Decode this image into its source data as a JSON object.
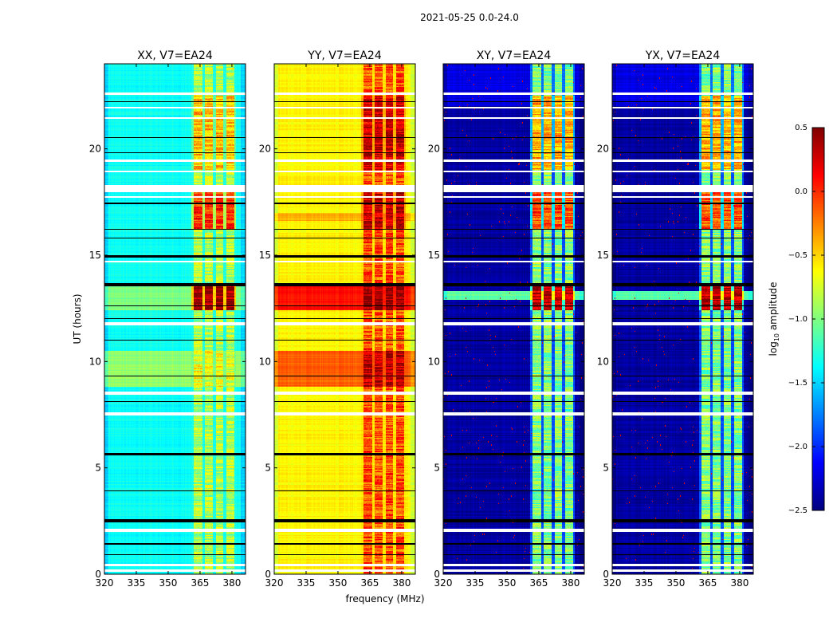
{
  "chart_data": {
    "type": "heatmap",
    "title": "2021-05-25 0.0-24.0",
    "xlabel": "frequency (MHz)",
    "ylabel": "UT (hours)",
    "xlim": [
      320,
      386.4
    ],
    "ylim": [
      0,
      24
    ],
    "xticks": [
      320,
      335,
      350,
      365,
      380
    ],
    "xtick_labels": [
      "320",
      "335",
      "350",
      "365",
      "380"
    ],
    "yticks": [
      0,
      5,
      10,
      15,
      20
    ],
    "ytick_labels": [
      "0",
      "5",
      "10",
      "15",
      "20"
    ],
    "colorbar": {
      "label_base": "log",
      "label_sub": "10",
      "label_rest": " amplitude",
      "colormap": "jet",
      "range": [
        -2.5,
        0.5
      ],
      "ticks": [
        0.5,
        0.0,
        -0.5,
        -1.0,
        -1.5,
        -2.0,
        -2.5
      ],
      "tick_labels": [
        "0.5",
        "0.0",
        "−0.5",
        "−1.0",
        "−1.5",
        "−2.0",
        "−2.5"
      ]
    },
    "rfi_channels_mhz": [
      [
        362,
        366
      ],
      [
        367.3,
        371
      ],
      [
        372.4,
        376
      ],
      [
        377.4,
        381
      ]
    ],
    "flagged_hours": [
      [
        0.12,
        0.22
      ],
      [
        0.38,
        0.5
      ],
      [
        2.0,
        2.15
      ],
      [
        7.45,
        7.6
      ],
      [
        8.45,
        8.6
      ],
      [
        11.7,
        11.85
      ],
      [
        14.65,
        14.72
      ],
      [
        17.7,
        17.78
      ],
      [
        17.95,
        18.3
      ],
      [
        18.9,
        18.97
      ],
      [
        19.4,
        19.5
      ],
      [
        21.4,
        21.5
      ],
      [
        21.9,
        21.97
      ],
      [
        22.55,
        22.65
      ]
    ],
    "dark_hours": [
      [
        0.9,
        0.95
      ],
      [
        1.4,
        1.45
      ],
      [
        2.45,
        2.6
      ],
      [
        3.1,
        3.13
      ],
      [
        3.9,
        3.93
      ],
      [
        4.9,
        4.93
      ],
      [
        5.6,
        5.7
      ],
      [
        7.0,
        7.03
      ],
      [
        8.1,
        8.13
      ],
      [
        9.3,
        9.33
      ],
      [
        11.0,
        11.03
      ],
      [
        12.0,
        12.03
      ],
      [
        12.6,
        12.63
      ],
      [
        13.55,
        13.7
      ],
      [
        14.9,
        15.0
      ],
      [
        15.8,
        15.83
      ],
      [
        16.2,
        16.23
      ],
      [
        17.4,
        17.47
      ],
      [
        19.8,
        19.83
      ],
      [
        20.5,
        20.56
      ],
      [
        22.2,
        22.23
      ]
    ],
    "panels": [
      {
        "title": "XX, V7=EA24",
        "base": -1.35,
        "rfi_level": -0.85,
        "segments": [
          {
            "hours": [
              8.8,
              10.5
            ],
            "level": -0.95
          },
          {
            "hours": [
              12.4,
              13.6
            ],
            "level": -1.0
          },
          {
            "hours": [
              11.9,
              12.4
            ],
            "level": -1.3
          }
        ],
        "rfi_segments": [
          {
            "hours": [
              12.4,
              13.6
            ],
            "level": 0.45
          },
          {
            "hours": [
              16.2,
              18.0
            ],
            "level": 0.0
          },
          {
            "hours": [
              19.0,
              22.5
            ],
            "level": -0.45
          },
          {
            "hours": [
              8.8,
              10.5
            ],
            "level": -0.7
          }
        ]
      },
      {
        "title": "YY, V7=EA24",
        "base": -0.6,
        "rfi_level": -0.1,
        "segments": [
          {
            "hours": [
              8.8,
              10.5
            ],
            "level": -0.15
          },
          {
            "hours": [
              12.4,
              13.6
            ],
            "level": 0.1
          },
          {
            "hours": [
              16.6,
              17.0
            ],
            "level": -0.4
          }
        ],
        "rfi_segments": [
          {
            "hours": [
              12.4,
              13.6
            ],
            "level": 0.45
          },
          {
            "hours": [
              16.2,
              18.0
            ],
            "level": 0.3
          },
          {
            "hours": [
              19.0,
              22.5
            ],
            "level": 0.25
          },
          {
            "hours": [
              8.8,
              10.5
            ],
            "level": 0.3
          }
        ]
      },
      {
        "title": "XY, V7=EA24",
        "base": -2.4,
        "rfi_level": -1.0,
        "segments": [
          {
            "hours": [
              12.9,
              13.3
            ],
            "level": -1.1
          },
          {
            "hours": [
              22.0,
              24.0
            ],
            "level": -2.2
          }
        ],
        "rfi_segments": [
          {
            "hours": [
              12.4,
              13.6
            ],
            "level": 0.3
          },
          {
            "hours": [
              16.2,
              18.0
            ],
            "level": -0.1
          },
          {
            "hours": [
              19.0,
              22.5
            ],
            "level": -0.4
          }
        ]
      },
      {
        "title": "YX, V7=EA24",
        "base": -2.4,
        "rfi_level": -1.0,
        "segments": [
          {
            "hours": [
              12.9,
              13.3
            ],
            "level": -1.1
          },
          {
            "hours": [
              22.0,
              24.0
            ],
            "level": -2.2
          }
        ],
        "rfi_segments": [
          {
            "hours": [
              12.4,
              13.6
            ],
            "level": 0.3
          },
          {
            "hours": [
              16.2,
              18.0
            ],
            "level": -0.1
          },
          {
            "hours": [
              19.0,
              22.5
            ],
            "level": -0.4
          }
        ]
      }
    ]
  }
}
